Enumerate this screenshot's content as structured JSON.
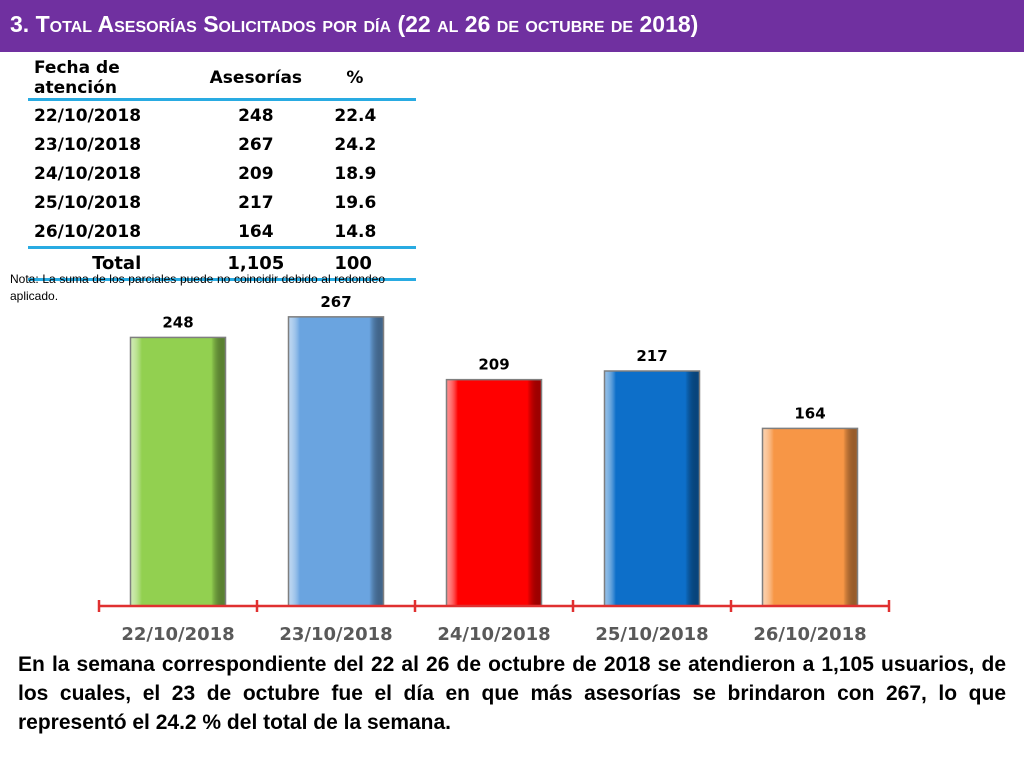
{
  "header": {
    "number": "3.",
    "title": "Total Asesorías Solicitados por día",
    "period": "(22 al 26 de octubre de 2018)"
  },
  "table": {
    "headers": [
      "Fecha de atención",
      "Asesorías",
      "%"
    ],
    "rows": [
      [
        "22/10/2018",
        "248",
        "22.4"
      ],
      [
        "23/10/2018",
        "267",
        "24.2"
      ],
      [
        "24/10/2018",
        "209",
        "18.9"
      ],
      [
        "25/10/2018",
        "217",
        "19.6"
      ],
      [
        "26/10/2018",
        "164",
        "14.8"
      ]
    ],
    "total": [
      "Total",
      "1,105",
      "100"
    ]
  },
  "note": "Nota: La suma de los parciales puede no coincidir debido al redondeo aplicado.",
  "chart_data": {
    "type": "bar",
    "categories": [
      "22/10/2018",
      "23/10/2018",
      "24/10/2018",
      "25/10/2018",
      "26/10/2018"
    ],
    "values": [
      248,
      267,
      209,
      217,
      164
    ],
    "colors": [
      "#92d050",
      "#6aa4e0",
      "#ff0000",
      "#0d6fc9",
      "#f79646"
    ],
    "axis_color": "#e03030",
    "label_color": "#595959",
    "ylim": [
      0,
      300
    ],
    "grid": false,
    "data_labels": true
  },
  "summary": "En la semana correspondiente del 22 al 26 de octubre de 2018 se atendieron a 1,105 usuarios, de los cuales, el 23 de octubre fue el día en que más asesorías se brindaron con 267, lo que representó el 24.2 % del total de la semana."
}
